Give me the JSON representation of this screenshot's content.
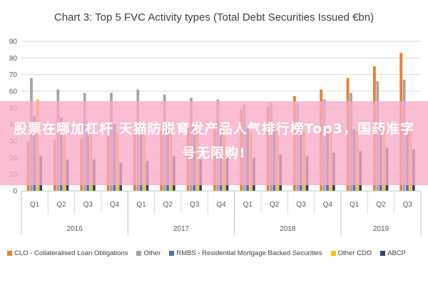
{
  "chart_data": {
    "type": "bar",
    "title": "Chart 3: Top 5 FVC Activity types (Total Debt Securities Issued €bn)",
    "ylim": [
      0,
      90
    ],
    "yticks": [
      0,
      10,
      20,
      30,
      40,
      50,
      60,
      70,
      80,
      90
    ],
    "categories": [
      "Q1",
      "Q2",
      "Q3",
      "Q4",
      "Q1",
      "Q2",
      "Q3",
      "Q4",
      "Q1",
      "Q2",
      "Q3",
      "Q4",
      "Q1",
      "Q2",
      "Q3"
    ],
    "groups": [
      {
        "label": "2016",
        "count": 4
      },
      {
        "label": "2017",
        "count": 4
      },
      {
        "label": "2018",
        "count": 4
      },
      {
        "label": "2019",
        "count": 3
      }
    ],
    "series": [
      {
        "name": "CLO - Collateralised Loan Obligations",
        "color": "#ed7d31",
        "values": [
          30,
          31,
          32,
          33,
          34,
          36,
          38,
          40,
          49,
          51,
          57,
          61,
          68,
          75,
          83
        ]
      },
      {
        "name": "Other",
        "color": "#a5a5a5",
        "values": [
          68,
          61,
          59,
          59,
          61,
          58,
          56,
          55,
          52,
          53,
          53,
          55,
          59,
          66,
          67
        ]
      },
      {
        "name": "RMBS - Residential Mortgage Backed Securities",
        "color": "#4472c4",
        "values": [
          45,
          44,
          42,
          40,
          40,
          40,
          39,
          38,
          38,
          38,
          38,
          37,
          37,
          38,
          38
        ]
      },
      {
        "name": "Other CDO",
        "color": "#ffc000",
        "values": [
          55,
          36,
          35,
          35,
          37,
          37,
          38,
          37,
          36,
          36,
          36,
          36,
          36,
          36,
          36
        ]
      },
      {
        "name": "ABCP",
        "color": "#264478",
        "values": [
          21,
          19,
          19,
          17,
          18,
          21,
          19,
          21,
          20,
          22,
          21,
          23,
          24,
          26,
          25
        ]
      }
    ],
    "grid": true,
    "legend_position": "bottom"
  },
  "overlay": {
    "banner_text": "股票在哪加杠杆 天猫防脱育发产品人气排行榜Top3，国药准字号无限购!"
  }
}
